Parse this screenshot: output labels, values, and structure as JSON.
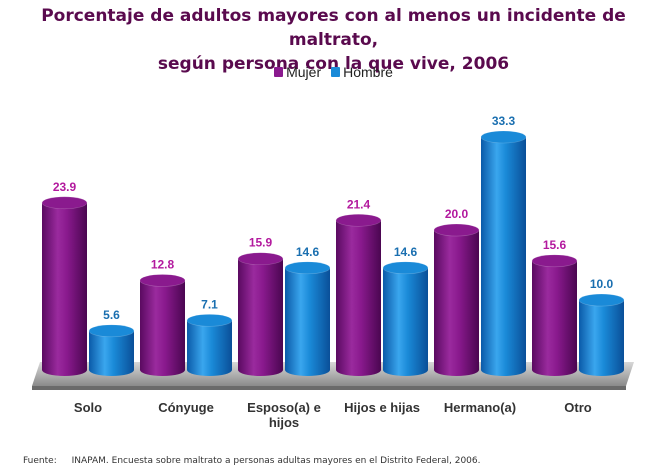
{
  "title_line1": "Porcentaje de adultos mayores con al menos un incidente de maltrato,",
  "title_line2": "según persona con la que vive, 2006",
  "source_label": "Fuente:",
  "source_text": "INAPAM. Encuesta sobre maltrato a personas adultas mayores en el Distrito Federal, 2006.",
  "colors": {
    "mujer": "#8a1a8e",
    "hombre": "#1a8ad8",
    "mujer_label": "#b3199e",
    "hombre_label": "#1a6fb0",
    "floor": "#a8a8a8"
  },
  "chart_data": {
    "type": "bar",
    "title": "Porcentaje de adultos mayores con al menos un incidente de maltrato, según persona con la que vive, 2006",
    "categories": [
      "Solo",
      "Cónyuge",
      "Esposo(a) e hijos",
      "Hijos e hijas",
      "Hermano(a)",
      "Otro"
    ],
    "category_lines": [
      [
        "Solo"
      ],
      [
        "Cónyuge"
      ],
      [
        "Esposo(a) e",
        "hijos"
      ],
      [
        "Hijos e hijas"
      ],
      [
        "Hermano(a)"
      ],
      [
        "Otro"
      ]
    ],
    "series": [
      {
        "name": "Mujer",
        "values": [
          23.9,
          12.8,
          15.9,
          21.4,
          20.0,
          15.6
        ]
      },
      {
        "name": "Hombre",
        "values": [
          5.6,
          7.1,
          14.6,
          14.6,
          33.3,
          10.0
        ]
      }
    ],
    "value_labels": [
      [
        "23.9",
        "12.8",
        "15.9",
        "21.4",
        "20.0",
        "15.6"
      ],
      [
        "5.6",
        "7.1",
        "14.6",
        "14.6",
        "33.3",
        "10.0"
      ]
    ],
    "ylim": [
      0,
      35
    ],
    "legend_position": "top-center",
    "grid": false,
    "style": "3d-cylinder"
  }
}
